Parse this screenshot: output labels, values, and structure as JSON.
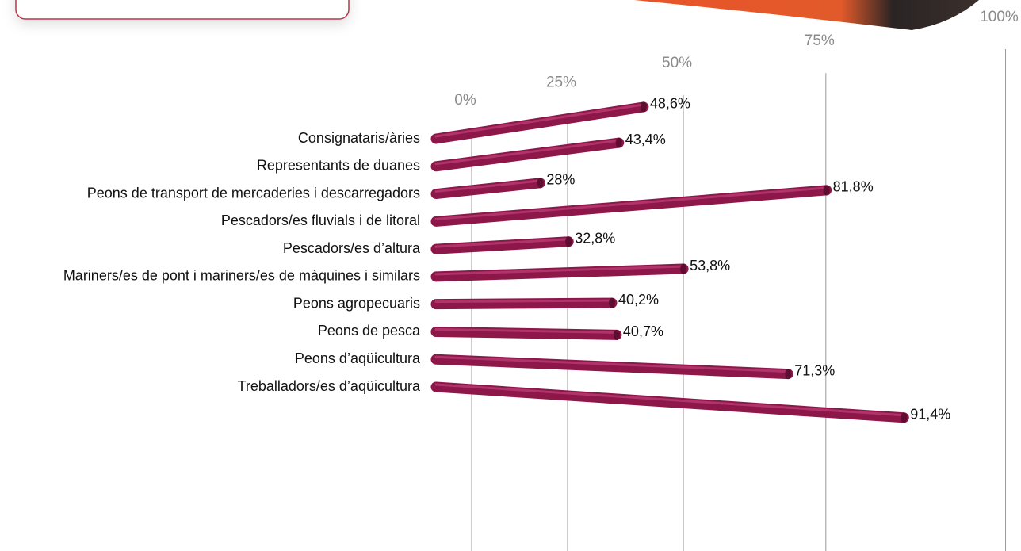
{
  "chart_data": {
    "type": "bar",
    "orientation": "horizontal",
    "categories": [
      "Consignataris/àries",
      "Representants de duanes",
      "Peons de transport de mercaderies i descarregadors",
      "Pescadors/es fluvials i de litoral",
      "Pescadors/es d’altura",
      "Mariners/es de pont i mariners/es de màquines i similars",
      "Peons agropecuaris",
      "Peons de pesca",
      "Peons d’aqüicultura",
      "Treballadors/es d’aqüicultura"
    ],
    "values": [
      48.6,
      43.4,
      28,
      81.8,
      32.8,
      53.8,
      40.2,
      40.7,
      71.3,
      91.4
    ],
    "value_labels": [
      "48,6%",
      "43,4%",
      "28%",
      "81,8%",
      "32,8%",
      "53,8%",
      "40,2%",
      "40,7%",
      "71,3%",
      "91,4%"
    ],
    "color": "#8c1748",
    "xlim": [
      0,
      100
    ],
    "xticks": [
      {
        "value": 0,
        "label": "0%"
      },
      {
        "value": 25,
        "label": "25%"
      },
      {
        "value": 50,
        "label": "50%"
      },
      {
        "value": 75,
        "label": "75%"
      },
      {
        "value": 100,
        "label": "100%"
      }
    ],
    "grid": true
  }
}
